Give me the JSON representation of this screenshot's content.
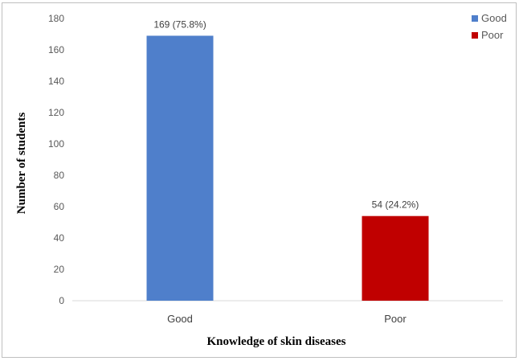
{
  "chart_data": {
    "type": "bar",
    "categories": [
      "Good",
      "Poor"
    ],
    "values": [
      169,
      54
    ],
    "data_labels": [
      "169 (75.8%)",
      "54 (24.2%)"
    ],
    "colors": [
      "#4f7fcb",
      "#c00000"
    ],
    "xlabel": "Knowledge of skin diseases",
    "ylabel": "Number of students",
    "ylim": [
      0,
      180
    ],
    "yticks": [
      0,
      20,
      40,
      60,
      80,
      100,
      120,
      140,
      160,
      180
    ],
    "grid": false,
    "legend": {
      "position": "top-right",
      "entries": [
        {
          "label": "Good",
          "color": "#4f7fcb"
        },
        {
          "label": "Poor",
          "color": "#c00000"
        }
      ]
    }
  }
}
